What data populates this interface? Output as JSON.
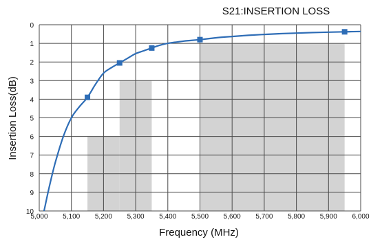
{
  "chart_data": {
    "type": "line",
    "title": "S21:INSERTION LOSS",
    "xlabel": "Frequency (MHz)",
    "ylabel": "Insertion Loss(dB)",
    "xlim": [
      5000,
      6000
    ],
    "ylim": [
      0,
      10
    ],
    "y_inverted": true,
    "grid": true,
    "x_ticks": [
      "5,000",
      "5,100",
      "5,200",
      "5,300",
      "5,400",
      "5,500",
      "5,600",
      "5,700",
      "5,800",
      "5,900",
      "6,000"
    ],
    "y_ticks": [
      "0",
      "1",
      "2",
      "3",
      "4",
      "5",
      "6",
      "7",
      "8",
      "9",
      "10"
    ],
    "series": [
      {
        "color": "#2e6db6",
        "x": [
          5015,
          5030,
          5050,
          5075,
          5100,
          5125,
          5150,
          5175,
          5200,
          5225,
          5250,
          5275,
          5300,
          5325,
          5350,
          5375,
          5400,
          5450,
          5500,
          5550,
          5600,
          5650,
          5700,
          5750,
          5800,
          5850,
          5900,
          5950,
          6000
        ],
        "y": [
          10.0,
          8.8,
          7.4,
          6.0,
          5.0,
          4.4,
          3.9,
          3.2,
          2.6,
          2.3,
          2.05,
          1.8,
          1.55,
          1.4,
          1.25,
          1.1,
          1.0,
          0.88,
          0.8,
          0.7,
          0.63,
          0.57,
          0.52,
          0.48,
          0.45,
          0.42,
          0.4,
          0.38,
          0.36
        ]
      }
    ],
    "markers": [
      {
        "x": 5150,
        "y": 3.9
      },
      {
        "x": 5250,
        "y": 2.05
      },
      {
        "x": 5350,
        "y": 1.25
      },
      {
        "x": 5500,
        "y": 0.8
      },
      {
        "x": 5950,
        "y": 0.38
      }
    ],
    "masks": [
      {
        "x0": 5150,
        "x1": 5250,
        "y0": 6,
        "y1": 10
      },
      {
        "x0": 5250,
        "x1": 5350,
        "y0": 3,
        "y1": 10
      },
      {
        "x0": 5500,
        "x1": 5950,
        "y0": 1,
        "y1": 10
      }
    ],
    "colors": {
      "line": "#2e6db6",
      "marker": "#2e6db6",
      "mask": "#d3d3d3",
      "grid": "#4a4a4a"
    }
  }
}
